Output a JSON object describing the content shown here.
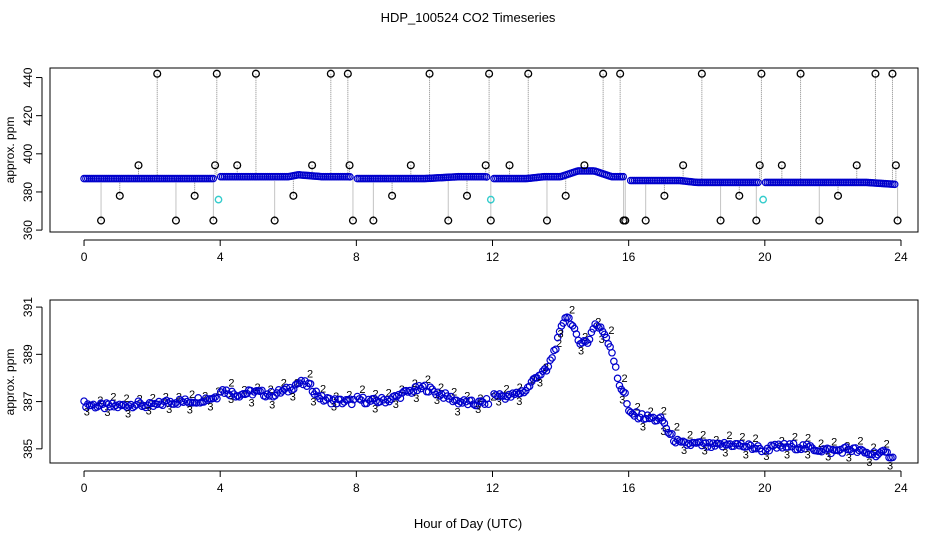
{
  "title": "HDP_100524  CO2 Timeseries",
  "colors": {
    "axis": "#000000",
    "top_blue": "#0000cc",
    "top_cyan": "#33cccc",
    "top_outlier": "#000000",
    "bottom_blue": "#0000cc",
    "bottom_green": "#22bb22",
    "dropline": "#888888"
  },
  "chart_data": [
    {
      "type": "scatter",
      "name": "raw-panel",
      "xlabel": "",
      "ylabel": "approx. ppm",
      "xlim": [
        -1,
        24.5
      ],
      "ylim": [
        359,
        445
      ],
      "xticks": [
        "0",
        "4",
        "8",
        "12",
        "16",
        "20",
        "24"
      ],
      "yticks": [
        "360",
        "380",
        "400",
        "420",
        "440"
      ],
      "baseline_series": {
        "name": "blue-baseline",
        "marker": "circle",
        "x": [
          0,
          1,
          2,
          3,
          3.8,
          4,
          5,
          6,
          6.3,
          7,
          7.8,
          8,
          9,
          10,
          11,
          11.8,
          12,
          13,
          13.5,
          14,
          14.5,
          15,
          15.5,
          15.9,
          16,
          17,
          17.5,
          18,
          19,
          19.8,
          20,
          21,
          22,
          23,
          23.8
        ],
        "y": [
          387,
          387,
          387,
          387,
          387,
          388,
          388,
          388,
          389,
          388,
          388,
          387,
          387,
          387,
          388,
          388,
          387,
          387,
          388,
          388,
          391,
          391,
          388,
          388,
          386,
          386,
          386,
          385,
          385,
          385,
          385,
          385,
          385,
          385,
          384
        ]
      },
      "cyan_points": {
        "x": [
          3.95,
          11.95,
          19.95
        ],
        "y": [
          376,
          376,
          376
        ]
      },
      "outliers": {
        "marker": "open-circle",
        "x": [
          0.5,
          1.05,
          1.6,
          2.15,
          2.7,
          3.25,
          3.8,
          3.85,
          3.9,
          4.5,
          5.05,
          5.6,
          6.15,
          6.7,
          7.25,
          7.75,
          7.8,
          7.9,
          8.5,
          9.05,
          9.6,
          10.15,
          10.7,
          11.25,
          11.8,
          11.9,
          11.95,
          12.5,
          13.05,
          13.6,
          14.15,
          14.7,
          15.25,
          15.75,
          15.85,
          15.9,
          16.5,
          17.05,
          17.6,
          18.15,
          18.7,
          19.25,
          19.75,
          19.85,
          19.9,
          20.5,
          21.05,
          21.6,
          22.15,
          22.7,
          23.25,
          23.75,
          23.85,
          23.9
        ],
        "y": [
          365,
          378,
          394,
          442,
          365,
          378,
          365,
          394,
          442,
          394,
          442,
          365,
          378,
          394,
          442,
          442,
          394,
          365,
          365,
          378,
          394,
          442,
          365,
          378,
          394,
          442,
          365,
          394,
          442,
          365,
          378,
          394,
          442,
          442,
          365,
          365,
          365,
          378,
          394,
          442,
          365,
          378,
          365,
          394,
          442,
          394,
          442,
          365,
          378,
          394,
          442,
          442,
          394,
          365
        ]
      }
    },
    {
      "type": "scatter",
      "name": "smoothed-panel",
      "xlabel": "Hour of Day (UTC)",
      "ylabel": "approx. ppm",
      "xlim": [
        -1,
        24.5
      ],
      "ylim": [
        384.4,
        391.3
      ],
      "xticks": [
        "0",
        "4",
        "8",
        "12",
        "16",
        "20",
        "24"
      ],
      "yticks": [
        "385",
        "387",
        "389",
        "391"
      ],
      "marker_labels": {
        "blue": "o",
        "green": "2",
        "dark": "3"
      },
      "series": [
        {
          "name": "smoothed-co2",
          "x": [
            0,
            0.5,
            1,
            1.5,
            2,
            2.5,
            3,
            3.5,
            3.9,
            4,
            4.5,
            5,
            5.5,
            6,
            6.3,
            6.6,
            7,
            7.5,
            7.9,
            8,
            8.5,
            9,
            9.5,
            10,
            10.5,
            11,
            11.5,
            11.9,
            12,
            12.5,
            13,
            13.3,
            13.6,
            13.9,
            14.15,
            14.3,
            14.5,
            14.8,
            15,
            15.3,
            15.5,
            15.7,
            15.9,
            16,
            16.3,
            16.6,
            17,
            17.2,
            17.5,
            18,
            18.5,
            19,
            19.5,
            19.9,
            20,
            20.5,
            21,
            21.5,
            22,
            22.5,
            23,
            23.5,
            23.8
          ],
          "y": [
            386.9,
            386.8,
            386.8,
            386.9,
            386.8,
            387.0,
            387.0,
            387.1,
            387.2,
            387.5,
            387.3,
            387.4,
            387.3,
            387.5,
            387.8,
            387.7,
            387.1,
            387.0,
            387.0,
            387.1,
            387.0,
            387.1,
            387.4,
            387.6,
            387.3,
            387.0,
            386.9,
            387.0,
            387.3,
            387.2,
            387.5,
            388.1,
            388.3,
            389.5,
            390.7,
            390.4,
            389.6,
            389.5,
            390.3,
            389.9,
            389.2,
            387.8,
            387.3,
            386.5,
            386.4,
            386.3,
            386.2,
            385.6,
            385.2,
            385.2,
            385.1,
            385.2,
            385.1,
            385.0,
            385.0,
            385.1,
            385.1,
            385.0,
            384.9,
            385.0,
            384.8,
            384.8,
            384.7
          ]
        }
      ]
    }
  ]
}
